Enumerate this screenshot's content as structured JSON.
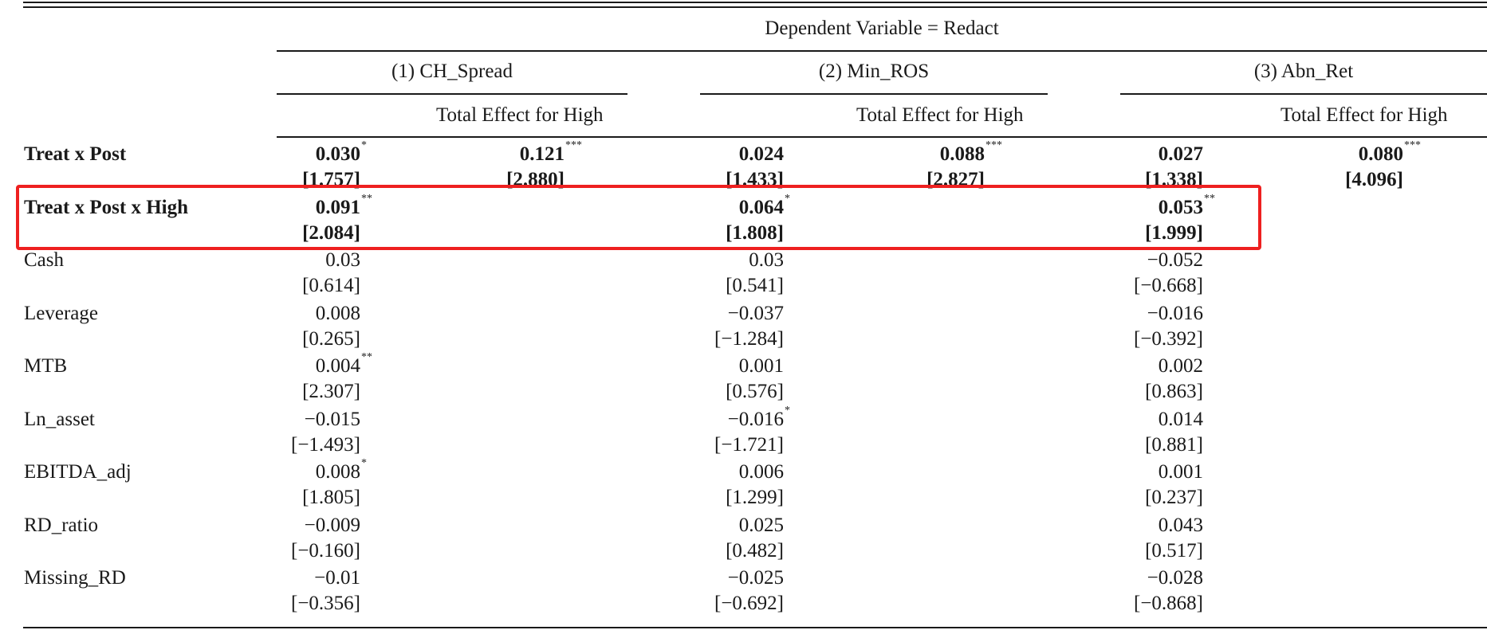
{
  "header": {
    "dependent_variable": "Dependent Variable = Redact",
    "models": [
      {
        "label": "(1) CH_Spread"
      },
      {
        "label": "(2) Min_ROS"
      },
      {
        "label": "(3) Abn_Ret"
      }
    ],
    "total_effect_label": "Total Effect for High"
  },
  "rows": [
    {
      "label": "Treat x Post",
      "bold": true,
      "cells": [
        {
          "coef": "0.030",
          "stars": "*",
          "t": "[1.757]"
        },
        {
          "coef": "0.121",
          "stars": "***",
          "t": "[2.880]"
        },
        {
          "coef": "0.024",
          "stars": "",
          "t": "[1.433]"
        },
        {
          "coef": "0.088",
          "stars": "***",
          "t": "[2.827]"
        },
        {
          "coef": "0.027",
          "stars": "",
          "t": "[1.338]"
        },
        {
          "coef": "0.080",
          "stars": "***",
          "t": "[4.096]"
        }
      ]
    },
    {
      "label": "Treat x Post x High",
      "bold": true,
      "cells": [
        {
          "coef": "0.091",
          "stars": "**",
          "t": "[2.084]"
        },
        {
          "coef": "0.064",
          "stars": "*",
          "t": "[1.808]"
        },
        {
          "coef": "0.053",
          "stars": "**",
          "t": "[1.999]"
        }
      ]
    },
    {
      "label": "Cash",
      "bold": false,
      "cells": [
        {
          "coef": "0.03",
          "stars": "",
          "t": "[0.614]"
        },
        {
          "coef": "0.03",
          "stars": "",
          "t": "[0.541]"
        },
        {
          "coef": "−0.052",
          "stars": "",
          "t": "[−0.668]"
        }
      ]
    },
    {
      "label": "Leverage",
      "bold": false,
      "cells": [
        {
          "coef": "0.008",
          "stars": "",
          "t": "[0.265]"
        },
        {
          "coef": "−0.037",
          "stars": "",
          "t": "[−1.284]"
        },
        {
          "coef": "−0.016",
          "stars": "",
          "t": "[−0.392]"
        }
      ]
    },
    {
      "label": "MTB",
      "bold": false,
      "cells": [
        {
          "coef": "0.004",
          "stars": "**",
          "t": "[2.307]"
        },
        {
          "coef": "0.001",
          "stars": "",
          "t": "[0.576]"
        },
        {
          "coef": "0.002",
          "stars": "",
          "t": "[0.863]"
        }
      ]
    },
    {
      "label": "Ln_asset",
      "bold": false,
      "cells": [
        {
          "coef": "−0.015",
          "stars": "",
          "t": "[−1.493]"
        },
        {
          "coef": "−0.016",
          "stars": "*",
          "t": "[−1.721]"
        },
        {
          "coef": "0.014",
          "stars": "",
          "t": "[0.881]"
        }
      ]
    },
    {
      "label": "EBITDA_adj",
      "bold": false,
      "cells": [
        {
          "coef": "0.008",
          "stars": "*",
          "t": "[1.805]"
        },
        {
          "coef": "0.006",
          "stars": "",
          "t": "[1.299]"
        },
        {
          "coef": "0.001",
          "stars": "",
          "t": "[0.237]"
        }
      ]
    },
    {
      "label": "RD_ratio",
      "bold": false,
      "cells": [
        {
          "coef": "−0.009",
          "stars": "",
          "t": "[−0.160]"
        },
        {
          "coef": "0.025",
          "stars": "",
          "t": "[0.482]"
        },
        {
          "coef": "0.043",
          "stars": "",
          "t": "[0.517]"
        }
      ]
    },
    {
      "label": "Missing_RD",
      "bold": false,
      "cells": [
        {
          "coef": "−0.01",
          "stars": "",
          "t": "[−0.356]"
        },
        {
          "coef": "−0.025",
          "stars": "",
          "t": "[−0.692]"
        },
        {
          "coef": "−0.028",
          "stars": "",
          "t": "[−0.868]"
        }
      ]
    }
  ]
}
